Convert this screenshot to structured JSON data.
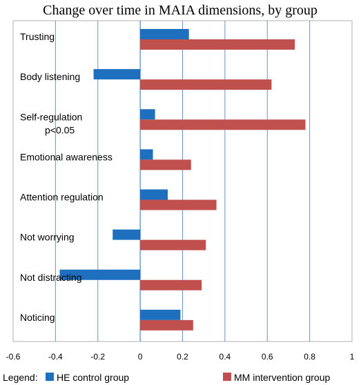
{
  "chart_data": {
    "type": "bar",
    "orientation": "horizontal",
    "title": "Change over time in MAIA dimensions, by group",
    "categories": [
      "Trusting",
      "Body listening",
      "Self-regulation\np<0.05",
      "Emotional awareness",
      "Attention regulation",
      "Not worrying",
      "Not distracting",
      "Noticing"
    ],
    "series": [
      {
        "name": "HE control group",
        "color": "#1f6fbf",
        "values": [
          0.23,
          -0.22,
          0.07,
          0.06,
          0.13,
          -0.13,
          -0.38,
          0.19
        ]
      },
      {
        "name": "MM intervention group",
        "color": "#c0504d",
        "values": [
          0.73,
          0.62,
          0.78,
          0.24,
          0.36,
          0.31,
          0.29,
          0.25
        ]
      }
    ],
    "xlim": [
      -0.6,
      1
    ],
    "x_ticks": [
      "-0.6",
      "-0.4",
      "-0.2",
      "0",
      "0.2",
      "0.4",
      "0.6",
      "0.8",
      "1"
    ],
    "grid": "vertical",
    "legend": {
      "label": "Legend:",
      "placement": "bottom"
    }
  }
}
